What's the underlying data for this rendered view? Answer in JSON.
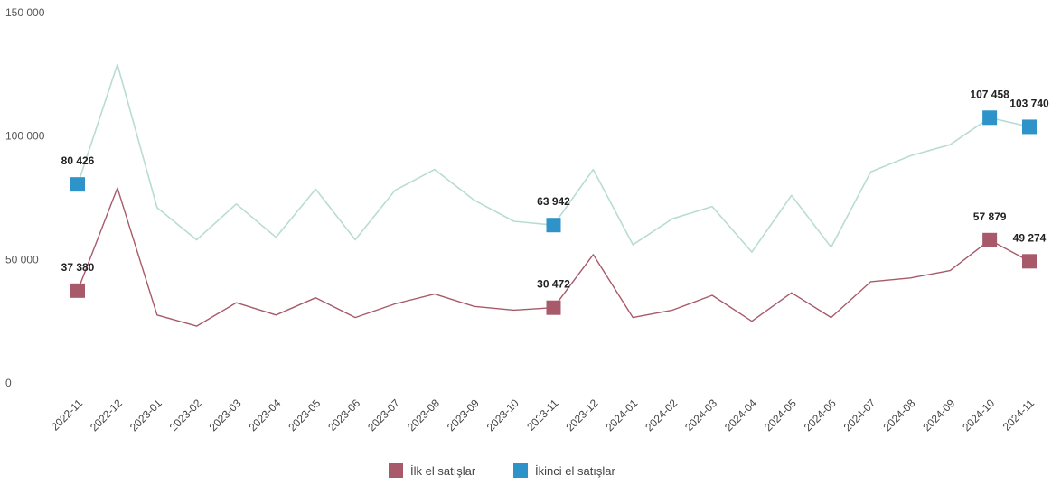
{
  "chart_data": {
    "type": "line",
    "x": [
      "2022-11",
      "2022-12",
      "2023-01",
      "2023-02",
      "2023-03",
      "2023-04",
      "2023-05",
      "2023-06",
      "2023-07",
      "2023-08",
      "2023-09",
      "2023-10",
      "2023-11",
      "2023-12",
      "2024-01",
      "2024-02",
      "2024-03",
      "2024-04",
      "2024-05",
      "2024-06",
      "2024-07",
      "2024-08",
      "2024-09",
      "2024-10",
      "2024-11"
    ],
    "ylim": [
      0,
      150000
    ],
    "yticks": [
      0,
      50000,
      100000,
      150000
    ],
    "ytick_labels": [
      "0",
      "50 000",
      "100 000",
      "150 000"
    ],
    "grid": false,
    "legend_position": "bottom",
    "series": [
      {
        "name": "İlk el satışlar",
        "color": "#a85a6a",
        "values": [
          37380,
          79000,
          27500,
          23000,
          32500,
          27500,
          34500,
          26500,
          32000,
          36000,
          31000,
          29500,
          30472,
          52000,
          26500,
          29500,
          35500,
          25000,
          36500,
          26500,
          41000,
          42500,
          45500,
          57879,
          49274
        ]
      },
      {
        "name": "İkinci el satışlar",
        "color": "#2e93c8",
        "line_color": "#b8dcd4",
        "values": [
          80426,
          129000,
          71000,
          58000,
          72500,
          59000,
          78500,
          58000,
          78000,
          86500,
          74000,
          65500,
          63942,
          86500,
          56000,
          66500,
          71500,
          53000,
          76000,
          55000,
          85500,
          92000,
          96500,
          107458,
          103740
        ]
      }
    ],
    "data_labels": [
      {
        "series": 0,
        "index": 0,
        "text": "37 380"
      },
      {
        "series": 0,
        "index": 12,
        "text": "30 472"
      },
      {
        "series": 0,
        "index": 23,
        "text": "57 879"
      },
      {
        "series": 0,
        "index": 24,
        "text": "49 274"
      },
      {
        "series": 1,
        "index": 0,
        "text": "80 426"
      },
      {
        "series": 1,
        "index": 12,
        "text": "63 942"
      },
      {
        "series": 1,
        "index": 23,
        "text": "107 458"
      },
      {
        "series": 1,
        "index": 24,
        "text": "103 740"
      }
    ]
  }
}
